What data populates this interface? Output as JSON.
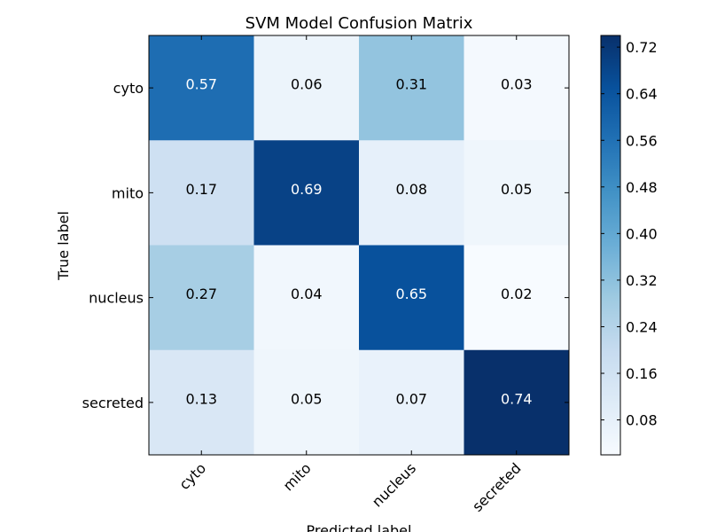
{
  "chart_data": {
    "type": "heatmap",
    "title": "SVM Model Confusion Matrix",
    "xlabel": "Predicted label",
    "ylabel": "True label",
    "x_categories": [
      "cyto",
      "mito",
      "nucleus",
      "secreted"
    ],
    "y_categories": [
      "cyto",
      "mito",
      "nucleus",
      "secreted"
    ],
    "values": [
      [
        0.57,
        0.06,
        0.31,
        0.03
      ],
      [
        0.17,
        0.69,
        0.08,
        0.05
      ],
      [
        0.27,
        0.04,
        0.65,
        0.02
      ],
      [
        0.13,
        0.05,
        0.07,
        0.74
      ]
    ],
    "cell_labels": [
      [
        "0.57",
        "0.06",
        "0.31",
        "0.03"
      ],
      [
        "0.17",
        "0.69",
        "0.08",
        "0.05"
      ],
      [
        "0.27",
        "0.04",
        "0.65",
        "0.02"
      ],
      [
        "0.13",
        "0.05",
        "0.07",
        "0.74"
      ]
    ],
    "colormap": "Blues",
    "color_range": [
      0.02,
      0.74
    ],
    "colorbar_ticks": [
      "0.08",
      "0.16",
      "0.24",
      "0.32",
      "0.40",
      "0.48",
      "0.56",
      "0.64",
      "0.72"
    ],
    "colorbar_placement": "right",
    "x_tick_rotation": 45,
    "grid": false
  }
}
